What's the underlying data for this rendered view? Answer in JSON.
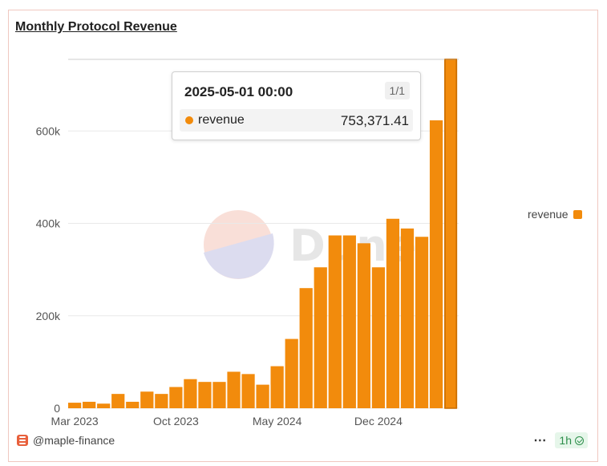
{
  "title": "Monthly Protocol Revenue",
  "watermark": "Dune",
  "legend_label": "revenue",
  "tooltip": {
    "date": "2025-05-01 00:00",
    "page": "1/1",
    "series": "revenue",
    "value": "753,371.41"
  },
  "footer": {
    "author": "@maple-finance",
    "refresh": "1h",
    "more_label": "⋯"
  },
  "colors": {
    "bar": "#f28b0c",
    "grid": "#e9e9e9"
  },
  "chart_data": {
    "type": "bar",
    "title": "Monthly Protocol Revenue",
    "xlabel": "",
    "ylabel": "",
    "ylim": [
      0,
      755000
    ],
    "yticks": [
      0,
      200000,
      400000,
      600000
    ],
    "ytick_labels": [
      "0",
      "200k",
      "400k",
      "600k"
    ],
    "xtick_labels": [
      "Mar 2023",
      "Oct 2023",
      "May 2024",
      "Dec 2024"
    ],
    "xtick_categories": [
      "2023-03",
      "2023-10",
      "2024-05",
      "2024-12"
    ],
    "legend_position": "right",
    "grid": true,
    "categories": [
      "2023-03",
      "2023-04",
      "2023-05",
      "2023-06",
      "2023-07",
      "2023-08",
      "2023-09",
      "2023-10",
      "2023-11",
      "2023-12",
      "2024-01",
      "2024-02",
      "2024-03",
      "2024-04",
      "2024-05",
      "2024-06",
      "2024-07",
      "2024-08",
      "2024-09",
      "2024-10",
      "2024-11",
      "2024-12",
      "2025-01",
      "2025-02",
      "2025-03",
      "2025-04",
      "2025-05"
    ],
    "series": [
      {
        "name": "revenue",
        "values": [
          12000,
          14000,
          10000,
          31000,
          14000,
          36000,
          31000,
          46000,
          63000,
          57000,
          57000,
          79000,
          74000,
          51000,
          91000,
          150000,
          260000,
          305000,
          374000,
          374000,
          357000,
          305000,
          410000,
          389000,
          371000,
          623000,
          753371.41
        ]
      }
    ]
  }
}
